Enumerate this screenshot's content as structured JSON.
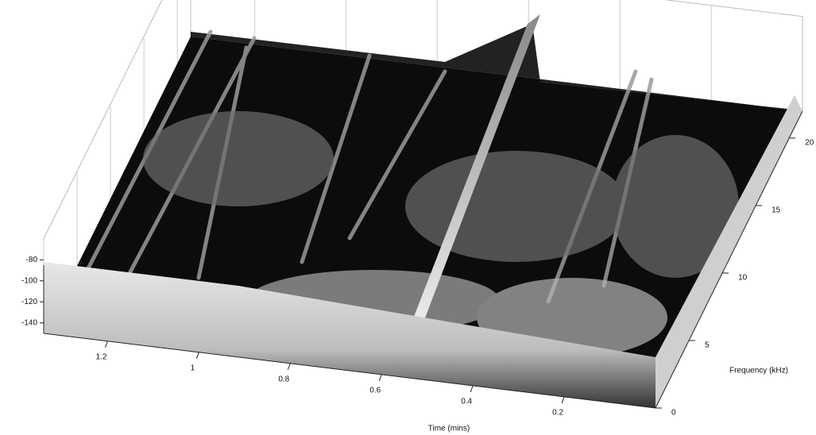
{
  "chart_data": {
    "type": "surface3d",
    "xlabel": "Time (mins)",
    "ylabel": "Frequency (kHz)",
    "xlim": [
      0,
      1.34
    ],
    "xticks": [
      1.2,
      1,
      0.8,
      0.6,
      0.4,
      0.2
    ],
    "ylim": [
      0,
      22
    ],
    "yticks": [
      0,
      5,
      10,
      15,
      20
    ],
    "zlim": [
      -150,
      -60
    ],
    "zticks": [
      -80,
      -100,
      -120,
      -140
    ]
  }
}
